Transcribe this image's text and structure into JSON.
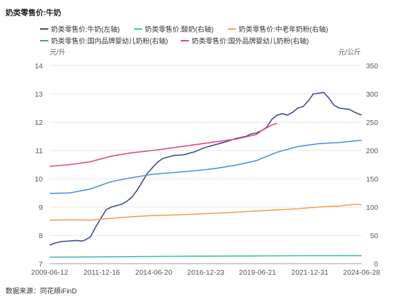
{
  "chart_data": {
    "type": "line",
    "title": "奶类零售价:牛奶",
    "left_unit": "元/升",
    "right_unit": "元/公斤",
    "source": "数据来源：同花顺iFinD",
    "x_ticks": [
      "2009-06-12",
      "2011-12-16",
      "2014-06-20",
      "2016-12-23",
      "2019-06-21",
      "2021-12-31",
      "2024-06-28"
    ],
    "x_range": [
      "2009-06-12",
      "2024-06-28"
    ],
    "y_left_ticks": [
      7,
      8,
      9,
      10,
      11,
      12,
      13,
      14
    ],
    "y_left_range": [
      7,
      14
    ],
    "y_right_ticks": [
      0,
      50,
      100,
      150,
      200,
      250,
      300,
      350
    ],
    "y_right_range": [
      0,
      350
    ],
    "grid": "horizontal",
    "legend_position": "top",
    "series": [
      {
        "name": "奶类零售价:牛奶(左轴)",
        "axis": "left",
        "color": "#3a4a8c",
        "points": [
          [
            "2009-06-12",
            7.65
          ],
          [
            "2009-09-01",
            7.72
          ],
          [
            "2010-01-01",
            7.78
          ],
          [
            "2010-06-01",
            7.8
          ],
          [
            "2010-10-01",
            7.82
          ],
          [
            "2011-01-01",
            7.8
          ],
          [
            "2011-03-01",
            7.84
          ],
          [
            "2011-06-01",
            7.95
          ],
          [
            "2011-09-01",
            8.3
          ],
          [
            "2011-12-01",
            8.6
          ],
          [
            "2012-03-01",
            8.9
          ],
          [
            "2012-06-01",
            9.0
          ],
          [
            "2012-09-01",
            9.05
          ],
          [
            "2012-12-01",
            9.1
          ],
          [
            "2013-03-01",
            9.2
          ],
          [
            "2013-06-01",
            9.35
          ],
          [
            "2013-09-01",
            9.6
          ],
          [
            "2013-12-01",
            9.9
          ],
          [
            "2014-03-01",
            10.2
          ],
          [
            "2014-06-01",
            10.4
          ],
          [
            "2014-09-01",
            10.6
          ],
          [
            "2014-12-01",
            10.72
          ],
          [
            "2015-06-01",
            10.82
          ],
          [
            "2015-12-01",
            10.85
          ],
          [
            "2016-06-01",
            10.95
          ],
          [
            "2016-12-01",
            11.1
          ],
          [
            "2017-06-01",
            11.2
          ],
          [
            "2017-12-01",
            11.3
          ],
          [
            "2018-06-01",
            11.42
          ],
          [
            "2018-12-01",
            11.5
          ],
          [
            "2019-03-01",
            11.58
          ],
          [
            "2019-06-01",
            11.62
          ],
          [
            "2019-09-01",
            11.7
          ],
          [
            "2019-12-01",
            11.82
          ],
          [
            "2020-03-01",
            12.1
          ],
          [
            "2020-06-01",
            12.25
          ],
          [
            "2020-09-01",
            12.3
          ],
          [
            "2020-12-01",
            12.25
          ],
          [
            "2021-03-01",
            12.35
          ],
          [
            "2021-06-01",
            12.5
          ],
          [
            "2021-09-01",
            12.55
          ],
          [
            "2021-12-01",
            12.75
          ],
          [
            "2022-03-01",
            13.0
          ],
          [
            "2022-06-01",
            13.02
          ],
          [
            "2022-09-01",
            13.05
          ],
          [
            "2022-12-01",
            12.85
          ],
          [
            "2023-03-01",
            12.6
          ],
          [
            "2023-06-01",
            12.5
          ],
          [
            "2023-09-01",
            12.47
          ],
          [
            "2023-12-01",
            12.45
          ],
          [
            "2024-03-01",
            12.35
          ],
          [
            "2024-06-28",
            12.25
          ]
        ]
      },
      {
        "name": "奶类零售价:酸奶(右轴)",
        "axis": "right",
        "color": "#3cbcae",
        "points": [
          [
            "2009-06-12",
            11.5
          ],
          [
            "2011-06-01",
            11.8
          ],
          [
            "2013-06-01",
            12.5
          ],
          [
            "2015-06-01",
            13.0
          ],
          [
            "2017-06-01",
            13.3
          ],
          [
            "2019-06-01",
            13.6
          ],
          [
            "2021-06-01",
            14.0
          ],
          [
            "2023-06-01",
            14.2
          ],
          [
            "2024-06-28",
            14.1
          ]
        ]
      },
      {
        "name": "奶类零售价:中老年奶粉(右轴)",
        "axis": "right",
        "color": "#f0a050",
        "points": [
          [
            "2009-06-12",
            77
          ],
          [
            "2010-06-01",
            77.5
          ],
          [
            "2011-06-01",
            77
          ],
          [
            "2012-06-01",
            80
          ],
          [
            "2013-06-01",
            83
          ],
          [
            "2014-06-01",
            85
          ],
          [
            "2015-06-01",
            86
          ],
          [
            "2016-06-01",
            87.5
          ],
          [
            "2017-06-01",
            89
          ],
          [
            "2018-06-01",
            91
          ],
          [
            "2019-06-01",
            93
          ],
          [
            "2020-06-01",
            95
          ],
          [
            "2021-06-01",
            97
          ],
          [
            "2022-06-01",
            100
          ],
          [
            "2023-06-01",
            102
          ],
          [
            "2024-03-01",
            105
          ],
          [
            "2024-06-28",
            104
          ]
        ]
      },
      {
        "name": "奶类零售价:国内品牌婴幼儿奶粉(右轴)",
        "axis": "right",
        "color": "#4a90d9",
        "points": [
          [
            "2009-06-12",
            124
          ],
          [
            "2010-06-01",
            125
          ],
          [
            "2011-06-01",
            132
          ],
          [
            "2012-06-01",
            145
          ],
          [
            "2013-06-01",
            152
          ],
          [
            "2014-06-01",
            158
          ],
          [
            "2015-06-01",
            161
          ],
          [
            "2016-06-01",
            164
          ],
          [
            "2017-06-01",
            168
          ],
          [
            "2018-06-01",
            174
          ],
          [
            "2019-06-01",
            182
          ],
          [
            "2020-06-01",
            197
          ],
          [
            "2021-06-01",
            207
          ],
          [
            "2022-06-01",
            212
          ],
          [
            "2023-06-01",
            214
          ],
          [
            "2024-06-28",
            218
          ]
        ]
      },
      {
        "name": "奶类零售价:国外品牌婴幼儿奶粉(右轴)",
        "axis": "right",
        "color": "#e0457b",
        "points": [
          [
            "2009-06-12",
            172
          ],
          [
            "2010-06-01",
            175
          ],
          [
            "2011-06-01",
            180
          ],
          [
            "2012-06-01",
            190
          ],
          [
            "2013-06-01",
            196
          ],
          [
            "2014-06-01",
            200
          ],
          [
            "2015-06-01",
            205
          ],
          [
            "2016-06-01",
            210
          ],
          [
            "2017-06-01",
            215
          ],
          [
            "2018-06-01",
            220
          ],
          [
            "2019-06-01",
            228
          ],
          [
            "2019-09-01",
            235
          ],
          [
            "2019-12-01",
            240
          ],
          [
            "2020-03-01",
            245
          ],
          [
            "2020-06-01",
            248
          ]
        ]
      }
    ]
  }
}
